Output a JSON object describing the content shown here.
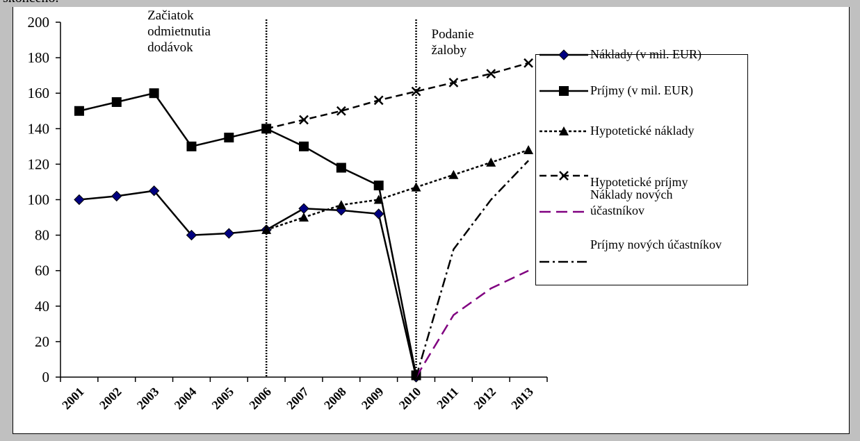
{
  "header_text": "skončeno.",
  "chart_data": {
    "type": "line",
    "categories": [
      "2001",
      "2002",
      "2003",
      "2004",
      "2005",
      "2006",
      "2007",
      "2008",
      "2009",
      "2010",
      "2011",
      "2012",
      "2013"
    ],
    "ylim": [
      0,
      200
    ],
    "yticks": [
      0,
      20,
      40,
      60,
      80,
      100,
      120,
      140,
      160,
      180,
      200
    ],
    "series": [
      {
        "name": "Náklady (v mil. EUR)",
        "color": "#000000",
        "marker": "diamond",
        "dash": "solid",
        "values": [
          100,
          102,
          105,
          80,
          81,
          83,
          95,
          94,
          92,
          0,
          null,
          null,
          null
        ]
      },
      {
        "name": "Príjmy (v mil. EUR)",
        "color": "#000000",
        "marker": "square",
        "dash": "solid",
        "values": [
          150,
          155,
          160,
          130,
          135,
          140,
          130,
          118,
          108,
          1,
          null,
          null,
          null
        ]
      },
      {
        "name": "Hypotetické náklady",
        "color": "#000000",
        "marker": "triangle",
        "dash": "dot",
        "values": [
          null,
          null,
          null,
          null,
          null,
          83,
          90,
          97,
          100,
          107,
          114,
          121,
          128
        ]
      },
      {
        "name": "Hypotetické príjmy",
        "color": "#000000",
        "marker": "x",
        "dash": "dash",
        "values": [
          null,
          null,
          null,
          null,
          null,
          140,
          145,
          150,
          156,
          161,
          166,
          171,
          177
        ]
      },
      {
        "name": "Náklady nových účastníkov",
        "color": "#800080",
        "marker": "none",
        "dash": "longdash",
        "values": [
          null,
          null,
          null,
          null,
          null,
          null,
          null,
          null,
          null,
          0,
          35,
          50,
          60
        ]
      },
      {
        "name": "Príjmy nových účastníkov",
        "color": "#000000",
        "marker": "none",
        "dash": "dashdot",
        "values": [
          null,
          null,
          null,
          null,
          null,
          null,
          null,
          null,
          null,
          0,
          72,
          100,
          122
        ]
      }
    ],
    "annotations": [
      {
        "text": "Začiatok odmietnutia dodávok",
        "at": "2006"
      },
      {
        "text": "Podanie žaloby",
        "at": "2010"
      }
    ]
  }
}
